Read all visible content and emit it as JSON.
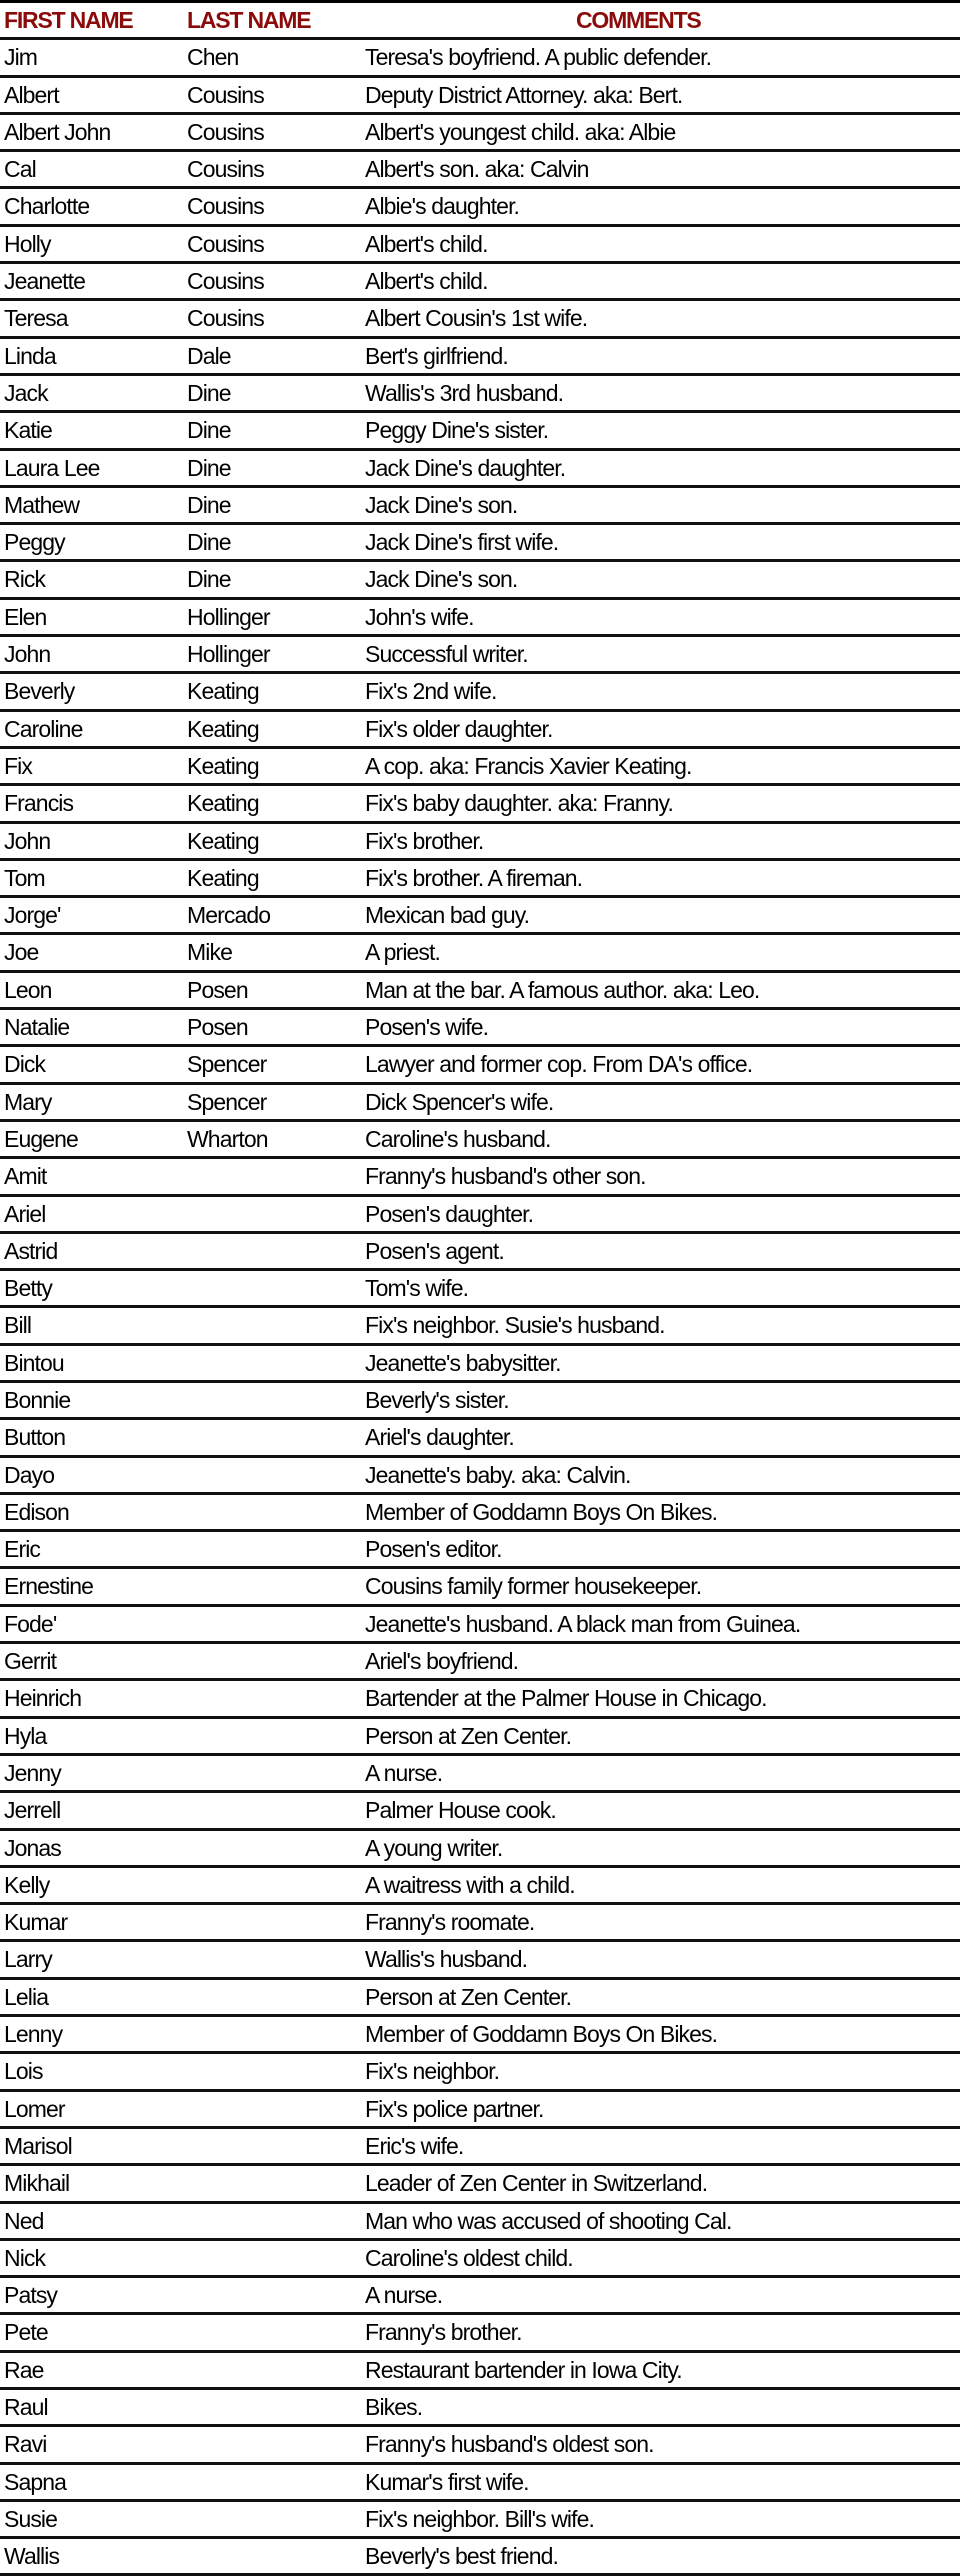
{
  "header": {
    "first": "FIRST NAME",
    "last": "LAST NAME",
    "comments": "COMMENTS"
  },
  "header_color": "#8b0a0a",
  "rows": [
    [
      "Jim",
      "Chen",
      "Teresa's boyfriend. A public defender."
    ],
    [
      "Albert",
      "Cousins",
      "Deputy District Attorney. aka: Bert."
    ],
    [
      "Albert John",
      "Cousins",
      "Albert's youngest child. aka: Albie"
    ],
    [
      "Cal",
      "Cousins",
      "Albert's son. aka: Calvin"
    ],
    [
      "Charlotte",
      "Cousins",
      "Albie's daughter."
    ],
    [
      "Holly",
      "Cousins",
      "Albert's child."
    ],
    [
      "Jeanette",
      "Cousins",
      "Albert's child."
    ],
    [
      "Teresa",
      "Cousins",
      "Albert Cousin's 1st wife."
    ],
    [
      "Linda",
      "Dale",
      "Bert's girlfriend."
    ],
    [
      "Jack",
      "Dine",
      "Wallis's 3rd husband."
    ],
    [
      "Katie",
      "Dine",
      "Peggy Dine's sister."
    ],
    [
      "Laura Lee",
      "Dine",
      "Jack Dine's daughter."
    ],
    [
      "Mathew",
      "Dine",
      "Jack Dine's son."
    ],
    [
      "Peggy",
      "Dine",
      "Jack Dine's first wife."
    ],
    [
      "Rick",
      "Dine",
      "Jack Dine's son."
    ],
    [
      "Elen",
      "Hollinger",
      "John's wife."
    ],
    [
      "John",
      "Hollinger",
      "Successful writer."
    ],
    [
      "Beverly",
      "Keating",
      "Fix's 2nd wife."
    ],
    [
      "Caroline",
      "Keating",
      "Fix's older daughter."
    ],
    [
      "Fix",
      "Keating",
      "A cop. aka: Francis Xavier Keating."
    ],
    [
      "Francis",
      "Keating",
      "Fix's baby daughter. aka: Franny."
    ],
    [
      "John",
      "Keating",
      "Fix's brother."
    ],
    [
      "Tom",
      "Keating",
      "Fix's brother. A fireman."
    ],
    [
      "Jorge'",
      "Mercado",
      "Mexican bad guy."
    ],
    [
      "Joe",
      "Mike",
      "A priest."
    ],
    [
      "Leon",
      "Posen",
      "Man at the bar. A famous author. aka: Leo."
    ],
    [
      "Natalie",
      "Posen",
      "Posen's wife."
    ],
    [
      "Dick",
      "Spencer",
      "Lawyer and former cop. From DA's office."
    ],
    [
      "Mary",
      "Spencer",
      "Dick Spencer's wife."
    ],
    [
      "Eugene",
      "Wharton",
      "Caroline's husband."
    ],
    [
      "Amit",
      "",
      "Franny's husband's other son."
    ],
    [
      "Ariel",
      "",
      "Posen's daughter."
    ],
    [
      "Astrid",
      "",
      "Posen's agent."
    ],
    [
      "Betty",
      "",
      "Tom's wife."
    ],
    [
      "Bill",
      "",
      "Fix's neighbor. Susie's husband."
    ],
    [
      "Bintou",
      "",
      "Jeanette's babysitter."
    ],
    [
      "Bonnie",
      "",
      "Beverly's sister."
    ],
    [
      "Button",
      "",
      "Ariel's daughter."
    ],
    [
      "Dayo",
      "",
      "Jeanette's baby. aka: Calvin."
    ],
    [
      "Edison",
      "",
      "Member of Goddamn Boys On Bikes."
    ],
    [
      "Eric",
      "",
      "Posen's editor."
    ],
    [
      "Ernestine",
      "",
      "Cousins family former housekeeper."
    ],
    [
      "Fode'",
      "",
      "Jeanette's husband. A black man from Guinea."
    ],
    [
      "Gerrit",
      "",
      "Ariel's boyfriend."
    ],
    [
      "Heinrich",
      "",
      "Bartender at the Palmer House in Chicago."
    ],
    [
      "Hyla",
      "",
      "Person at Zen Center."
    ],
    [
      "Jenny",
      "",
      "A nurse."
    ],
    [
      "Jerrell",
      "",
      "Palmer House cook."
    ],
    [
      "Jonas",
      "",
      "A young writer."
    ],
    [
      "Kelly",
      "",
      "A waitress with a child."
    ],
    [
      "Kumar",
      "",
      "Franny's roomate."
    ],
    [
      "Larry",
      "",
      "Wallis's husband."
    ],
    [
      "Lelia",
      "",
      "Person at Zen Center."
    ],
    [
      "Lenny",
      "",
      "Member of Goddamn Boys On Bikes."
    ],
    [
      "Lois",
      "",
      "Fix's neighbor."
    ],
    [
      "Lomer",
      "",
      "Fix's police partner."
    ],
    [
      "Marisol",
      "",
      "Eric's wife."
    ],
    [
      "Mikhail",
      "",
      "Leader of Zen Center in Switzerland."
    ],
    [
      "Ned",
      "",
      "Man who was accused of shooting Cal."
    ],
    [
      "Nick",
      "",
      "Caroline's oldest child."
    ],
    [
      "Patsy",
      "",
      "A nurse."
    ],
    [
      "Pete",
      "",
      "Franny's brother."
    ],
    [
      "Rae",
      "",
      "Restaurant bartender in Iowa City."
    ],
    [
      "Raul",
      "",
      "Bikes."
    ],
    [
      "Ravi",
      "",
      "Franny's husband's oldest son."
    ],
    [
      "Sapna",
      "",
      "Kumar's first wife."
    ],
    [
      "Susie",
      "",
      "Fix's neighbor. Bill's wife."
    ],
    [
      "Wallis",
      "",
      "Beverly's best friend."
    ]
  ]
}
